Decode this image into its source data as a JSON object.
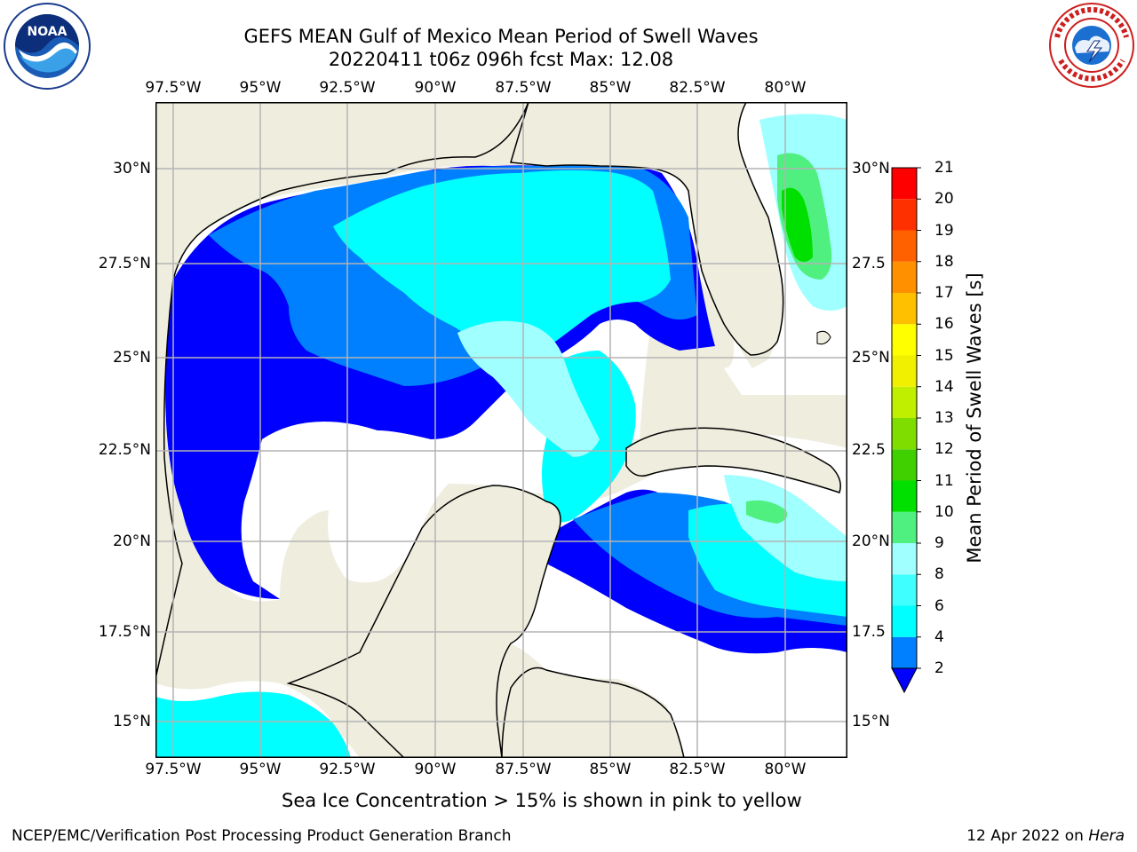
{
  "title": {
    "line1": "GEFS MEAN Gulf of Mexico Mean Period of Swell Waves",
    "line2": "20220411 t06z 096h fcst   Max: 12.08"
  },
  "logos": {
    "left_icon": "noaa-logo",
    "left_text": "NOAA",
    "left_ring_text": "NATIONAL OCEANIC AND ATMOSPHERIC ADMINISTRATION · U.S. DEPARTMENT OF COMMERCE",
    "right_icon": "national-weather-service-logo",
    "right_ring_text": "NATIONAL WEATHER SERVICE"
  },
  "map": {
    "lon_ticks": [
      "97.5°W",
      "95°W",
      "92.5°W",
      "90°W",
      "87.5°W",
      "85°W",
      "82.5°W",
      "80°W"
    ],
    "lat_ticks": [
      "30°N",
      "27.5°N",
      "25°N",
      "22.5°N",
      "20°N",
      "17.5°N",
      "15°N"
    ],
    "lat_ticks_right": [
      "30°N",
      "27.5",
      "25°N",
      "22.5",
      "20°N",
      "17.5",
      "15°N"
    ],
    "extent": {
      "lon_min": -98.0,
      "lon_max": -78.3,
      "lat_min": 14.0,
      "lat_max": 31.8
    },
    "grid": true,
    "colors": {
      "land": "#eeedde",
      "coast": "#000000",
      "grid": "#b3b3b3"
    }
  },
  "colorbar": {
    "label": "Mean Period of Swell Waves [s]",
    "levels": [
      "2",
      "4",
      "6",
      "8",
      "9",
      "10",
      "11",
      "12",
      "13",
      "14",
      "15",
      "16",
      "17",
      "18",
      "19",
      "20",
      "21"
    ],
    "colors": [
      "#0000ff",
      "#0080ff",
      "#00ffff",
      "#40ffff",
      "#a0ffff",
      "#50f080",
      "#00e000",
      "#40d000",
      "#80dd00",
      "#c0f000",
      "#f0f000",
      "#ffff00",
      "#ffc000",
      "#ff9000",
      "#ff6000",
      "#ff3000",
      "#ff0000"
    ],
    "extend": "min"
  },
  "note": "Sea Ice Concentration > 15% is shown in pink to yellow",
  "footer": {
    "left": "NCEP/EMC/Verification Post Processing Product Generation Branch",
    "right_date": "12 Apr 2022 on",
    "right_machine": "Hera"
  }
}
